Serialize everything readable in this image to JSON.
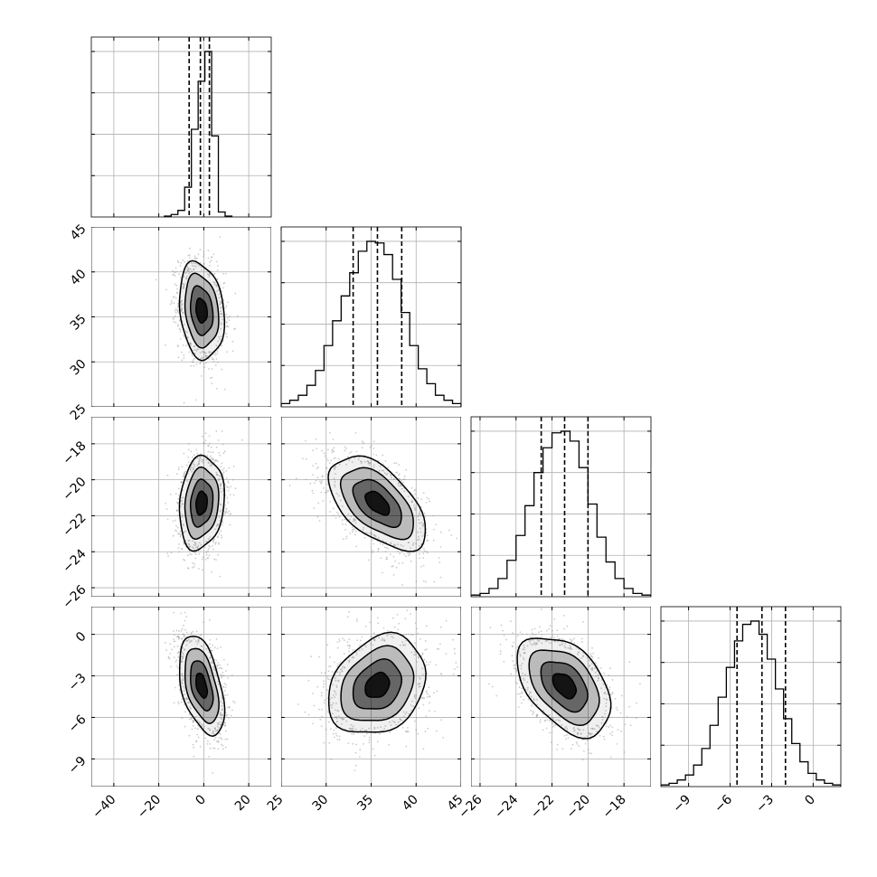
{
  "chart_data": {
    "type": "corner",
    "parameters": [
      {
        "range": [
          -50,
          30
        ],
        "ticks": [
          -40,
          -20,
          0,
          20
        ],
        "quantiles": [
          -6.5,
          -1.5,
          2.5
        ],
        "hist": [
          0.005,
          0.015,
          0.04,
          0.18,
          0.53,
          0.82,
          1.0,
          0.49,
          0.03,
          0.005
        ],
        "hist_range": [
          -17.5,
          12.5
        ],
        "center": -1,
        "sd": 5,
        "show_x_ticks": true,
        "show_y_ticks": false
      },
      {
        "range": [
          25,
          45
        ],
        "ticks": [
          25,
          30,
          35,
          40,
          45
        ],
        "quantiles": [
          33,
          35.7,
          38.4
        ],
        "hist": [
          0.02,
          0.04,
          0.07,
          0.13,
          0.22,
          0.37,
          0.52,
          0.67,
          0.81,
          0.94,
          1.0,
          0.99,
          0.92,
          0.77,
          0.57,
          0.37,
          0.23,
          0.14,
          0.07,
          0.04,
          0.02
        ],
        "hist_range": [
          25,
          45
        ],
        "center": 35.7,
        "sd": 2.7,
        "show_x_ticks": true,
        "show_y_ticks": true
      },
      {
        "range": [
          -26.5,
          -16.5
        ],
        "ticks": [
          -26,
          -24,
          -22,
          -20,
          -18
        ],
        "quantiles": [
          -22.6,
          -21.3,
          -20
        ],
        "hist": [
          0.01,
          0.02,
          0.05,
          0.11,
          0.22,
          0.37,
          0.55,
          0.75,
          0.9,
          0.99,
          1.0,
          0.94,
          0.78,
          0.56,
          0.36,
          0.21,
          0.11,
          0.05,
          0.02,
          0.01
        ],
        "hist_range": [
          -26.5,
          -16.5
        ],
        "center": -21.3,
        "sd": 1.3,
        "show_x_ticks": true,
        "show_y_ticks": true
      },
      {
        "range": [
          -11,
          2
        ],
        "ticks": [
          -9,
          -6,
          -3,
          0
        ],
        "quantiles": [
          -5.5,
          -3.7,
          -2
        ],
        "hist": [
          0.01,
          0.02,
          0.04,
          0.07,
          0.13,
          0.23,
          0.37,
          0.54,
          0.72,
          0.88,
          0.98,
          1.0,
          0.92,
          0.77,
          0.59,
          0.41,
          0.26,
          0.15,
          0.08,
          0.04,
          0.02,
          0.01
        ],
        "hist_range": [
          -11,
          2
        ],
        "center": -3.7,
        "sd": 1.8,
        "show_x_ticks": true,
        "show_y_ticks": true
      }
    ],
    "correlations": [
      [
        1,
        -0.2,
        0.15,
        -0.45
      ],
      [
        -0.2,
        1,
        -0.55,
        0.25
      ],
      [
        0.15,
        -0.55,
        1,
        -0.45
      ],
      [
        -0.45,
        0.25,
        -0.45,
        1
      ]
    ],
    "diagonal_tick_label_rotation_deg": -45,
    "grid": true,
    "histogram_style": "step",
    "contour_levels": [
      "0.5-sigma",
      "1-sigma",
      "1.5-sigma",
      "2-sigma"
    ],
    "scatter_outside_contours": true,
    "colors": {
      "line": "#000000",
      "grid": "#b0b0b0",
      "points": "#9a9a9a",
      "density": "#000000",
      "background": "#ffffff"
    }
  }
}
